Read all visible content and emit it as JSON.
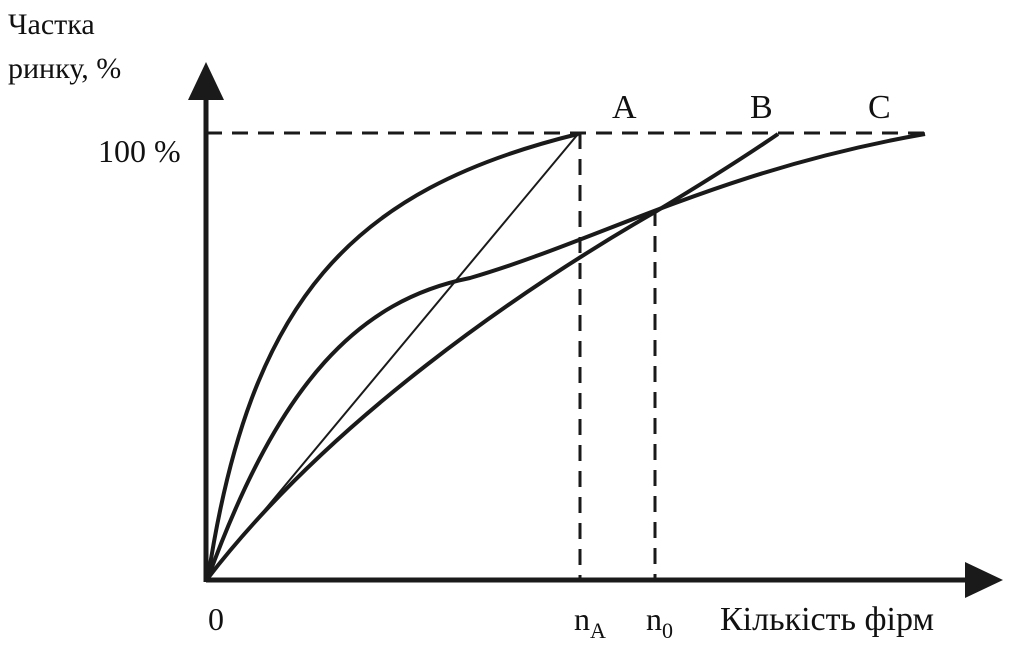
{
  "figure": {
    "y_axis_label_line1": "Частка",
    "y_axis_label_line2": "ринку, %",
    "y_tick_100": "100 %",
    "origin_label": "0",
    "x_tick_nA": {
      "base": "n",
      "sub": "A"
    },
    "x_tick_n0": {
      "base": "n",
      "sub": "0"
    },
    "x_axis_label": "Кількість фірм",
    "curve_labels": {
      "A": "A",
      "B": "B",
      "C": "C"
    },
    "line_color": "#1a1a1a"
  }
}
